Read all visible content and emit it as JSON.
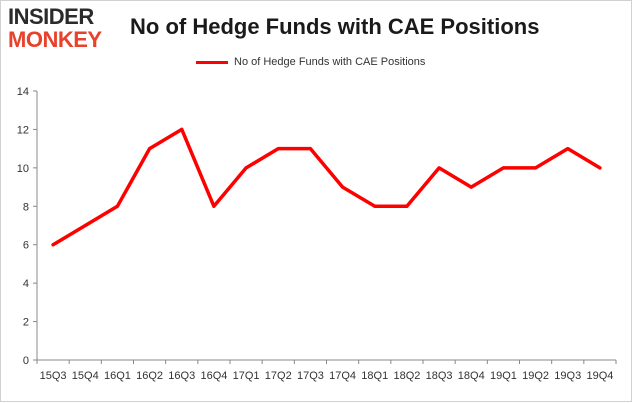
{
  "brand": {
    "logo_top": "INSIDER",
    "logo_bottom": "MONKEY"
  },
  "title": "No of Hedge Funds with CAE Positions",
  "colors": {
    "line": "#ff0000",
    "logo_accent": "#e8412c"
  },
  "chart_data": {
    "type": "line",
    "title": "No of Hedge Funds with CAE Positions",
    "xlabel": "",
    "ylabel": "",
    "ylim": [
      0,
      14
    ],
    "yticks": [
      0,
      2,
      4,
      6,
      8,
      10,
      12,
      14
    ],
    "grid": false,
    "legend_position": "top",
    "categories": [
      "15Q3",
      "15Q4",
      "16Q1",
      "16Q2",
      "16Q3",
      "16Q4",
      "17Q1",
      "17Q2",
      "17Q3",
      "17Q4",
      "18Q1",
      "18Q2",
      "18Q3",
      "18Q4",
      "19Q1",
      "19Q2",
      "19Q3",
      "19Q4"
    ],
    "series": [
      {
        "name": "No of Hedge Funds with CAE Positions",
        "values": [
          6,
          7,
          8,
          11,
          12,
          8,
          10,
          11,
          11,
          9,
          8,
          8,
          10,
          9,
          10,
          10,
          11,
          10
        ]
      }
    ]
  }
}
